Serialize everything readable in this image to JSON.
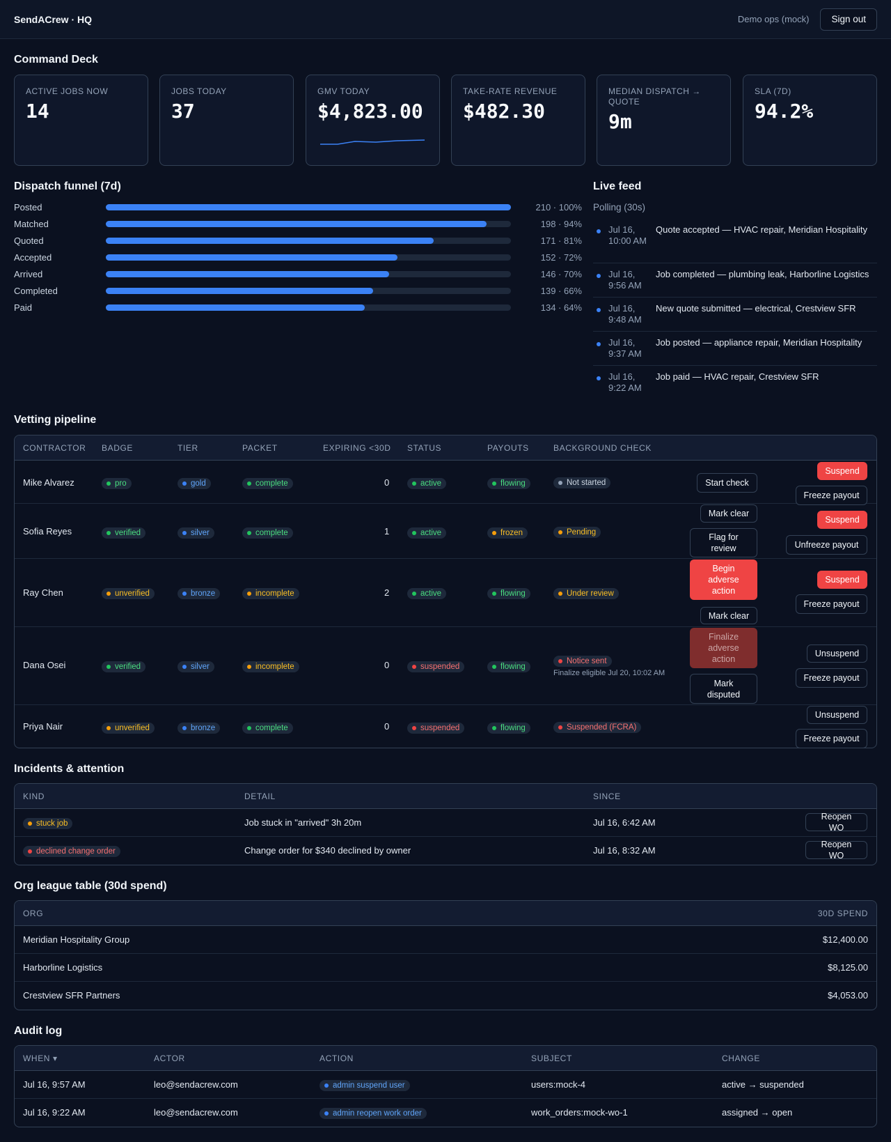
{
  "header": {
    "brand": "SendACrew · HQ",
    "user": "Demo ops (mock)",
    "signout": "Sign out"
  },
  "command_deck": {
    "title": "Command Deck",
    "kpis": [
      {
        "label": "Active jobs now",
        "value": "14"
      },
      {
        "label": "Jobs today",
        "value": "37"
      },
      {
        "label": "GMV today",
        "value": "$4,823.00"
      },
      {
        "label": "Take-rate revenue",
        "value": "$482.30"
      },
      {
        "label": "Median dispatch → quote",
        "value": "9m"
      },
      {
        "label": "SLA (7d)",
        "value": "94.2%"
      }
    ]
  },
  "funnel": {
    "title": "Dispatch funnel (7d)",
    "rows": [
      {
        "label": "Posted",
        "value": "210 · 100%",
        "pct": 100
      },
      {
        "label": "Matched",
        "value": "198 · 94%",
        "pct": 94
      },
      {
        "label": "Quoted",
        "value": "171 · 81%",
        "pct": 81
      },
      {
        "label": "Accepted",
        "value": "152 · 72%",
        "pct": 72
      },
      {
        "label": "Arrived",
        "value": "146 · 70%",
        "pct": 70
      },
      {
        "label": "Completed",
        "value": "139 · 66%",
        "pct": 66
      },
      {
        "label": "Paid",
        "value": "134 · 64%",
        "pct": 64
      }
    ]
  },
  "feed": {
    "title": "Live feed",
    "polling": "Polling (30s)",
    "items": [
      {
        "time": "Jul 16, 10:00 AM",
        "text": "Quote accepted — HVAC repair, Meridian Hospitality"
      },
      {
        "time": "Jul 16, 9:56 AM",
        "text": "Job completed — plumbing leak, Harborline Logistics"
      },
      {
        "time": "Jul 16, 9:48 AM",
        "text": "New quote submitted — electrical, Crestview SFR"
      },
      {
        "time": "Jul 16, 9:37 AM",
        "text": "Job posted — appliance repair, Meridian Hospitality"
      },
      {
        "time": "Jul 16, 9:22 AM",
        "text": "Job paid — HVAC repair, Crestview SFR"
      }
    ]
  },
  "vetting": {
    "title": "Vetting pipeline",
    "headers": [
      "Contractor",
      "Badge",
      "Tier",
      "Packet",
      "Expiring <30d",
      "Status",
      "Payouts",
      "Background check"
    ],
    "rows": [
      {
        "name": "Mike Alvarez",
        "badge": "pro",
        "tier": "gold",
        "packet": "complete",
        "expiring": "0",
        "status": "active",
        "payouts": "flowing",
        "bg": "Not started",
        "a1": "Start check",
        "a_suspend": "Suspend",
        "a_payout": "Freeze payout"
      },
      {
        "name": "Sofia Reyes",
        "badge": "verified",
        "tier": "silver",
        "packet": "complete",
        "expiring": "1",
        "status": "active",
        "payouts": "frozen",
        "bg": "Pending",
        "a1": "Mark clear",
        "a2": "Flag for review",
        "a_suspend": "Suspend",
        "a_payout": "Unfreeze payout"
      },
      {
        "name": "Ray Chen",
        "badge": "unverified",
        "tier": "bronze",
        "packet": "incomplete",
        "expiring": "2",
        "status": "active",
        "payouts": "flowing",
        "bg": "Under review",
        "a1": "Begin adverse action",
        "a2": "Mark clear",
        "a_suspend": "Suspend",
        "a_payout": "Freeze payout"
      },
      {
        "name": "Dana Osei",
        "badge": "verified",
        "tier": "silver",
        "packet": "incomplete",
        "expiring": "0",
        "status": "suspended",
        "payouts": "flowing",
        "bg": "Notice sent",
        "bg_note": "Finalize eligible Jul 20, 10:02 AM",
        "a1": "Finalize adverse action",
        "a2": "Mark disputed",
        "a_suspend": "Unsuspend",
        "a_payout": "Freeze payout"
      },
      {
        "name": "Priya Nair",
        "badge": "unverified",
        "tier": "bronze",
        "packet": "complete",
        "expiring": "0",
        "status": "suspended",
        "payouts": "flowing",
        "bg": "Suspended (FCRA)",
        "a_suspend": "Unsuspend",
        "a_payout": "Freeze payout"
      }
    ]
  },
  "incidents": {
    "title": "Incidents & attention",
    "headers": [
      "Kind",
      "Detail",
      "Since"
    ],
    "rows": [
      {
        "kind": "stuck job",
        "detail": "Job stuck in \"arrived\" 3h 20m",
        "since": "Jul 16, 6:42 AM",
        "action": "Reopen WO"
      },
      {
        "kind": "declined change order",
        "detail": "Change order for $340 declined by owner",
        "since": "Jul 16, 8:32 AM",
        "action": "Reopen WO"
      }
    ]
  },
  "league": {
    "title": "Org league table (30d spend)",
    "headers": [
      "Org",
      "30d spend"
    ],
    "rows": [
      {
        "org": "Meridian Hospitality Group",
        "spend": "$12,400.00"
      },
      {
        "org": "Harborline Logistics",
        "spend": "$8,125.00"
      },
      {
        "org": "Crestview SFR Partners",
        "spend": "$4,053.00"
      }
    ]
  },
  "audit": {
    "title": "Audit log",
    "headers": [
      "When ▾",
      "Actor",
      "Action",
      "Subject",
      "Change"
    ],
    "rows": [
      {
        "when": "Jul 16, 9:57 AM",
        "actor": "leo@sendacrew.com",
        "action": "admin suspend user",
        "subject": "users:mock-4",
        "change": "active → suspended"
      },
      {
        "when": "Jul 16, 9:22 AM",
        "actor": "leo@sendacrew.com",
        "action": "admin reopen work order",
        "subject": "work_orders:mock-wo-1",
        "change": "assigned → open"
      }
    ]
  },
  "colors": {
    "accent": "#3b82f6",
    "danger": "#ef4444",
    "success": "#22c55e",
    "warning": "#f59e0b",
    "background": "#0b1120"
  }
}
